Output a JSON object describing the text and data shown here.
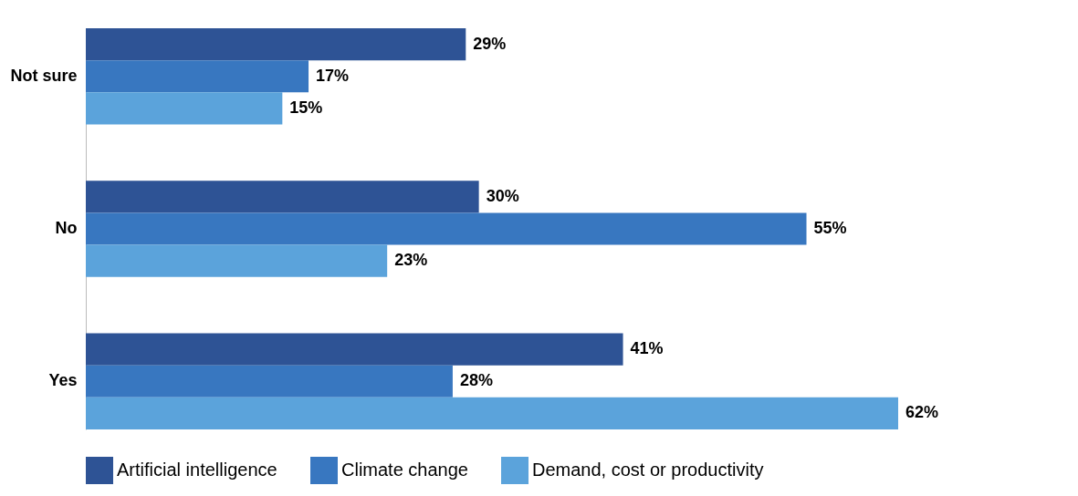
{
  "chart_data": {
    "type": "bar",
    "orientation": "horizontal",
    "categories": [
      "Not sure",
      "No",
      "Yes"
    ],
    "series": [
      {
        "name": "Artificial intelligence",
        "color": "#2e5395",
        "values": [
          29,
          30,
          41
        ],
        "value_labels": [
          "29%",
          "30%",
          "41%"
        ]
      },
      {
        "name": "Climate change",
        "color": "#3877c0",
        "values": [
          17,
          55,
          28
        ],
        "value_labels": [
          "17%",
          "55%",
          "28%"
        ]
      },
      {
        "name": "Demand, cost or productivity",
        "color": "#5ba3db",
        "values": [
          15,
          23,
          62
        ],
        "value_labels": [
          "15%",
          "23%",
          "62%"
        ]
      }
    ],
    "legend": "bottom"
  }
}
